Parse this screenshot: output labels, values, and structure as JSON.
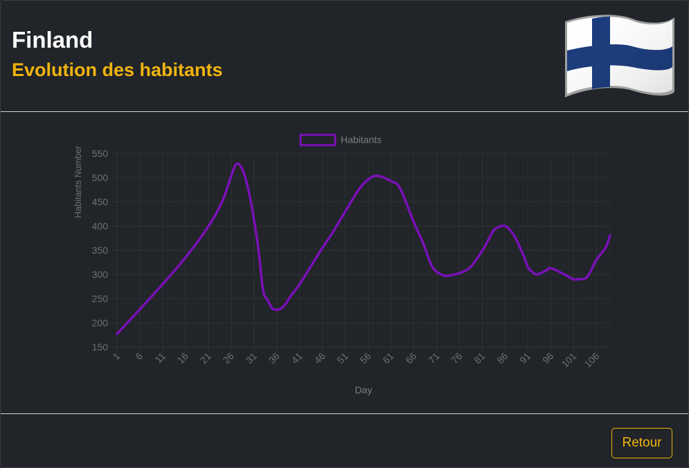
{
  "header": {
    "title": "Finland",
    "subtitle": "Evolution des habitants",
    "flag_icon": "finland-flag-icon"
  },
  "footer": {
    "retour_label": "Retour"
  },
  "colors": {
    "background": "#212428",
    "accent": "#f0b40f",
    "line": "#7a10b8",
    "flag_blue": "#16387a"
  },
  "chart_data": {
    "type": "line",
    "title": "",
    "xlabel": "Day",
    "ylabel": "Habitants Number",
    "ylim": [
      150,
      550
    ],
    "yticks": [
      150,
      200,
      250,
      300,
      350,
      400,
      450,
      500,
      550
    ],
    "xtick_labels": [
      "1",
      "6",
      "11",
      "16",
      "21",
      "26",
      "31",
      "36",
      "41",
      "46",
      "51",
      "56",
      "61",
      "66",
      "71",
      "76",
      "81",
      "86",
      "91",
      "96",
      "101",
      "106"
    ],
    "grid": true,
    "legend_position": "top",
    "series": [
      {
        "name": "Habitants",
        "color": "#7a10b8",
        "x": [
          1,
          6,
          11,
          16,
          21,
          24,
          26,
          27,
          28,
          29,
          30,
          31,
          32,
          33,
          34,
          35,
          36,
          37,
          38,
          39,
          41,
          46,
          48,
          51,
          54,
          56,
          58,
          61,
          63,
          66,
          68,
          70,
          72,
          74,
          78,
          81,
          83,
          84,
          86,
          88,
          90,
          91,
          92,
          93,
          95,
          96,
          99,
          101,
          102,
          104,
          106,
          108,
          109
        ],
        "y": [
          177,
          228,
          280,
          335,
          399,
          450,
          503,
          527,
          525,
          503,
          465,
          413,
          350,
          267,
          247,
          230,
          227,
          230,
          240,
          255,
          280,
          355,
          383,
          430,
          476,
          496,
          504,
          493,
          478,
          408,
          366,
          317,
          300,
          298,
          312,
          349,
          383,
          395,
          400,
          380,
          340,
          315,
          305,
          300,
          308,
          313,
          300,
          290,
          290,
          295,
          330,
          355,
          381
        ]
      }
    ]
  }
}
